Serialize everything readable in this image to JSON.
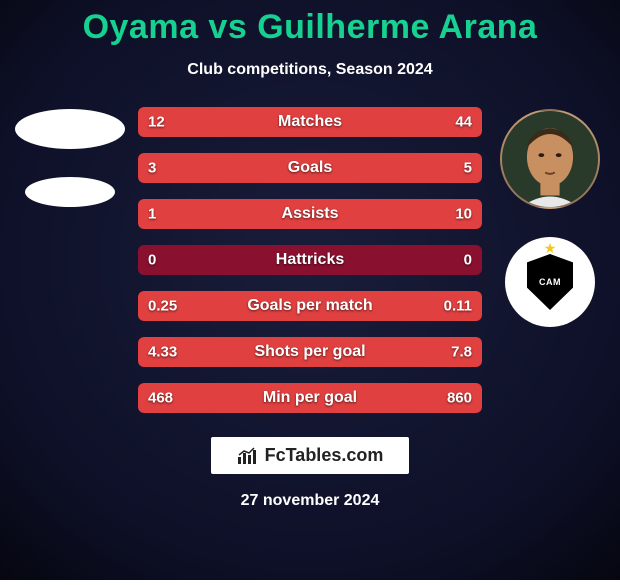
{
  "background": {
    "color_top": "#1a1d3a",
    "color_bottom": "#0e1028",
    "vignette": "#05060f"
  },
  "title": {
    "text": "Oyama vs Guilherme Arana",
    "color": "#16d190",
    "fontsize": 34,
    "fontweight": 800
  },
  "subtitle": {
    "text": "Club competitions, Season 2024",
    "color": "#ffffff",
    "fontsize": 16,
    "fontweight": 700
  },
  "left_player": {
    "name": "Oyama",
    "avatar_placeholder": true
  },
  "right_player": {
    "name": "Guilherme Arana",
    "avatar_color_skin": "#c89060",
    "club_badge_text": "CAM",
    "club_badge_bg": "#000000",
    "club_circle_bg": "#ffffff",
    "club_star_color": "#f5c518"
  },
  "bars": {
    "track_color": "#8a1030",
    "left_fill_color": "#e04040",
    "right_fill_color": "#e04040",
    "text_color": "#ffffff",
    "label_color": "#ffffff",
    "height": 30,
    "radius": 6,
    "fontsize_value": 15,
    "fontsize_label": 16,
    "items": [
      {
        "label": "Matches",
        "left_val": "12",
        "right_val": "44",
        "left_pct": 21,
        "right_pct": 79
      },
      {
        "label": "Goals",
        "left_val": "3",
        "right_val": "5",
        "left_pct": 38,
        "right_pct": 62
      },
      {
        "label": "Assists",
        "left_val": "1",
        "right_val": "10",
        "left_pct": 9,
        "right_pct": 91
      },
      {
        "label": "Hattricks",
        "left_val": "0",
        "right_val": "0",
        "left_pct": 0,
        "right_pct": 0
      },
      {
        "label": "Goals per match",
        "left_val": "0.25",
        "right_val": "0.11",
        "left_pct": 69,
        "right_pct": 31
      },
      {
        "label": "Shots per goal",
        "left_val": "4.33",
        "right_val": "7.8",
        "left_pct": 36,
        "right_pct": 64
      },
      {
        "label": "Min per goal",
        "left_val": "468",
        "right_val": "860",
        "left_pct": 35,
        "right_pct": 65
      }
    ]
  },
  "brand": {
    "text": "FcTables.com",
    "bg": "#ffffff",
    "color": "#222222",
    "icon_color": "#222222"
  },
  "date": {
    "text": "27 november 2024",
    "color": "#ffffff",
    "fontsize": 16
  }
}
